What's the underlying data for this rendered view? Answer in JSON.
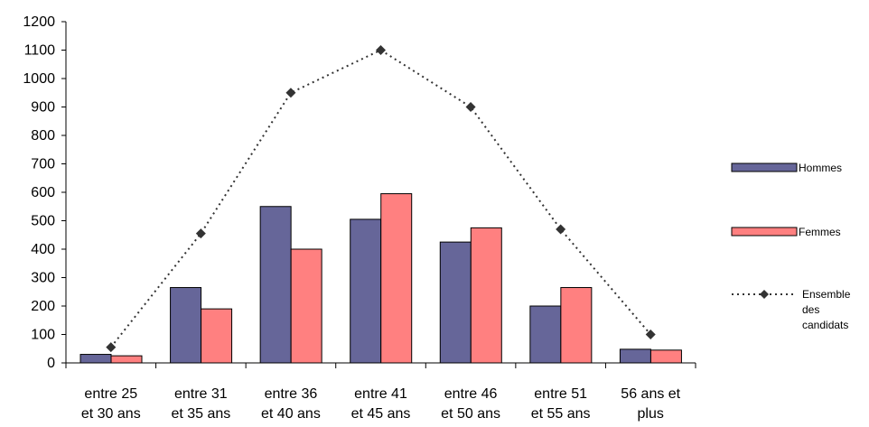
{
  "chart_data": {
    "type": "bar",
    "categories": [
      [
        "entre 25",
        "et 30 ans"
      ],
      [
        "entre 31",
        "et 35 ans"
      ],
      [
        "entre 36",
        "et 40 ans"
      ],
      [
        "entre 41",
        "et 45 ans"
      ],
      [
        "entre 46",
        "et 50 ans"
      ],
      [
        "entre 51",
        "et 55 ans"
      ],
      [
        "56 ans et",
        "plus"
      ]
    ],
    "series": [
      {
        "name": "Hommes",
        "kind": "bar",
        "color": "#666699",
        "values": [
          30,
          265,
          550,
          505,
          425,
          200,
          48
        ]
      },
      {
        "name": "Femmes",
        "kind": "bar",
        "color": "#ff8080",
        "values": [
          25,
          190,
          400,
          595,
          475,
          265,
          45
        ]
      },
      {
        "name": [
          "Ensemble",
          "des",
          "candidats"
        ],
        "kind": "line",
        "style": "dotted",
        "marker": "diamond",
        "color": "#333333",
        "values": [
          55,
          455,
          950,
          1100,
          900,
          470,
          100
        ]
      }
    ],
    "title": "",
    "xlabel": "",
    "ylabel": "",
    "ylim": [
      0,
      1200
    ],
    "yticks": [
      0,
      100,
      200,
      300,
      400,
      500,
      600,
      700,
      800,
      900,
      1000,
      1100,
      1200
    ],
    "grid": false,
    "legend_position": "right"
  }
}
